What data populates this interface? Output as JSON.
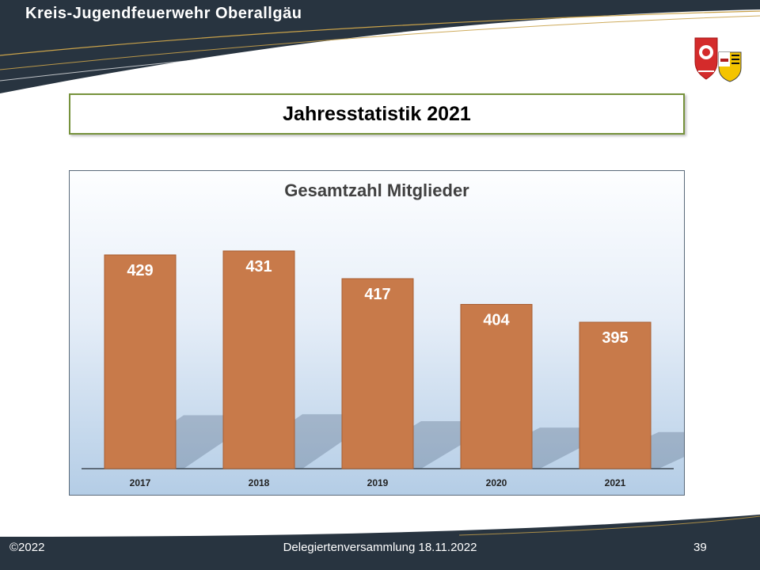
{
  "header": {
    "title": "Kreis-Jugendfeuerwehr  Oberallgäu"
  },
  "slide": {
    "title": "Jahresstatistik 2021"
  },
  "footer": {
    "copyright": "©2022",
    "event": "Delegiertenversammlung  18.11.2022",
    "page": "39"
  },
  "chart_data": {
    "type": "bar",
    "title": "Gesamtzahl Mitglieder",
    "categories": [
      "2017",
      "2018",
      "2019",
      "2020",
      "2021"
    ],
    "values": [
      429,
      431,
      417,
      404,
      395
    ],
    "data_labels": [
      "429",
      "431",
      "417",
      "404",
      "395"
    ],
    "xlabel": "",
    "ylabel": "",
    "grid": false,
    "legend": "none",
    "bar_color": "#c87a4a"
  }
}
